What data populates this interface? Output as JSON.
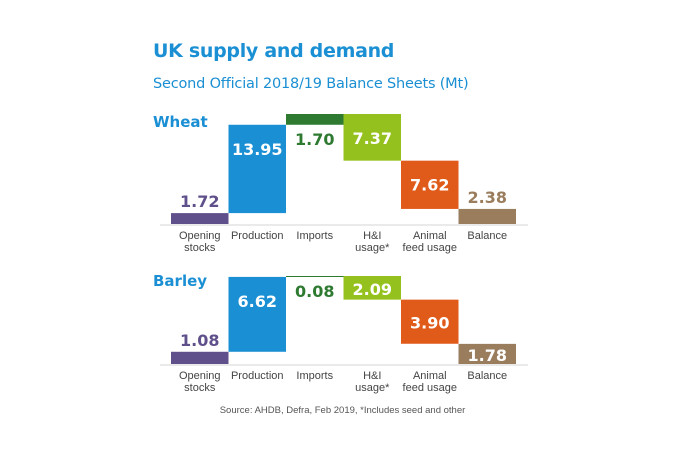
{
  "chart_data": [
    {
      "type": "waterfall",
      "title": "Wheat",
      "categories": [
        "Opening stocks",
        "Production",
        "Imports",
        "H&I usage*",
        "Animal feed usage",
        "Balance"
      ],
      "category_label_lines": [
        [
          "Opening",
          "stocks"
        ],
        [
          "Production"
        ],
        [
          "Imports"
        ],
        [
          "H&I",
          "usage*"
        ],
        [
          "Animal",
          "feed usage"
        ],
        [
          "Balance"
        ]
      ],
      "values": [
        1.72,
        13.95,
        1.7,
        -7.37,
        -7.62,
        2.38
      ],
      "value_labels": [
        "1.72",
        "13.95",
        "1.70",
        "7.37",
        "7.62",
        "2.38"
      ],
      "unit": "Mt"
    },
    {
      "type": "waterfall",
      "title": "Barley",
      "categories": [
        "Opening stocks",
        "Production",
        "Imports",
        "H&I usage*",
        "Animal feed usage",
        "Balance"
      ],
      "category_label_lines": [
        [
          "Opening",
          "stocks"
        ],
        [
          "Production"
        ],
        [
          "Imports"
        ],
        [
          "H&I",
          "usage*"
        ],
        [
          "Animal",
          "feed usage"
        ],
        [
          "Balance"
        ]
      ],
      "values": [
        1.08,
        6.62,
        0.08,
        -2.09,
        -3.9,
        1.78
      ],
      "value_labels": [
        "1.08",
        "6.62",
        "0.08",
        "2.09",
        "3.90",
        "1.78"
      ],
      "unit": "Mt"
    }
  ],
  "header": {
    "title": "UK supply and demand",
    "subtitle": "Second Official 2018/19 Balance Sheets (Mt)"
  },
  "colors": {
    "opening_stocks": "#5f4f8a",
    "production": "#1a8fd3",
    "imports": "#2e7a31",
    "hi_usage": "#95c11f",
    "animal_feed": "#e05a1a",
    "balance": "#9a7d5d",
    "heading": "#1a8fd3",
    "axis": "#dddddd",
    "category_text": "#444444"
  },
  "footer": {
    "source": "Source: AHDB, Defra, Feb 2019, *Includes seed and other"
  }
}
